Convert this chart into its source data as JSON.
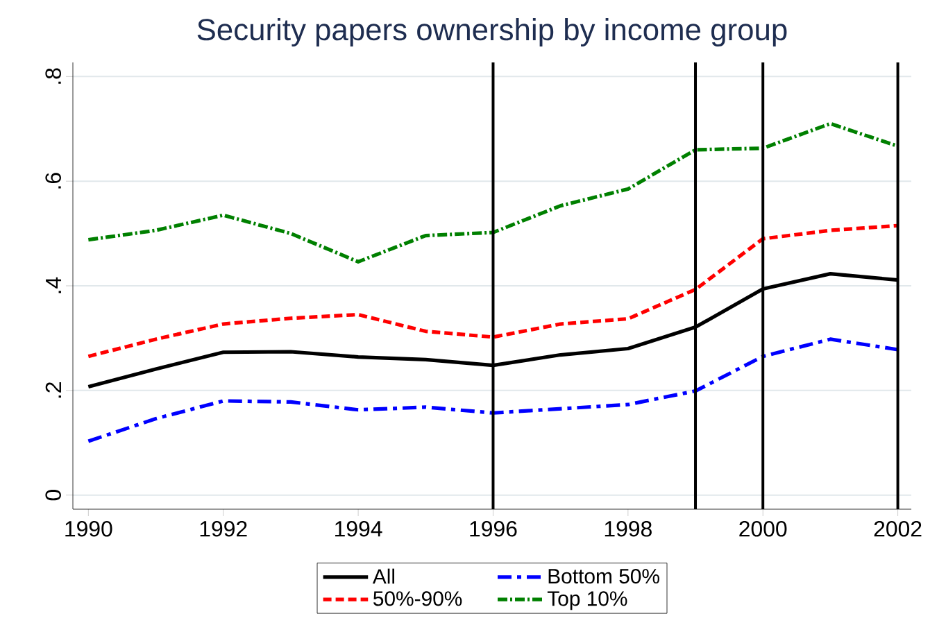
{
  "chart_data": {
    "type": "line",
    "title": "Security papers ownership by income group",
    "x": [
      1990,
      1991,
      1992,
      1993,
      1994,
      1995,
      1996,
      1997,
      1998,
      1999,
      2000,
      2001,
      2002
    ],
    "series": [
      {
        "name": "All",
        "color": "#000000",
        "line_style": "solid",
        "values": [
          0.207,
          0.241,
          0.273,
          0.274,
          0.264,
          0.259,
          0.248,
          0.268,
          0.28,
          0.321,
          0.394,
          0.423,
          0.411
        ]
      },
      {
        "name": "Bottom 50%",
        "color": "#0000ff",
        "line_style": "dashdot",
        "values": [
          0.103,
          0.146,
          0.18,
          0.178,
          0.163,
          0.168,
          0.157,
          0.165,
          0.173,
          0.199,
          0.265,
          0.298,
          0.278
        ]
      },
      {
        "name": "50%-90%",
        "color": "#ff0000",
        "line_style": "dashed",
        "values": [
          0.265,
          0.298,
          0.327,
          0.338,
          0.345,
          0.313,
          0.302,
          0.327,
          0.337,
          0.393,
          0.49,
          0.506,
          0.515
        ]
      },
      {
        "name": "Top 10%",
        "color": "#008000",
        "line_style": "dashdotdotted",
        "values": [
          0.488,
          0.506,
          0.535,
          0.5,
          0.446,
          0.496,
          0.502,
          0.553,
          0.585,
          0.66,
          0.663,
          0.71,
          0.667
        ]
      }
    ],
    "xlim": [
      1989.77,
      2002.2
    ],
    "xticks": [
      1990,
      1992,
      1994,
      1996,
      1998,
      2000,
      2002
    ],
    "ylim": [
      -0.027,
      0.827
    ],
    "yticks": [
      0,
      {
        "value": 0.2,
        "label": ".2"
      },
      {
        "value": 0.4,
        "label": ".4"
      },
      {
        "value": 0.6,
        "label": ".6"
      },
      {
        "value": 0.8,
        "label": ".8"
      }
    ],
    "ref_lines": [
      {
        "axis": "x",
        "value": 1996,
        "color": "#000000"
      },
      {
        "axis": "x",
        "value": 1999,
        "color": "#000000"
      },
      {
        "axis": "x",
        "value": 2000,
        "color": "#000000"
      },
      {
        "axis": "x",
        "value": 2002,
        "color": "#000000"
      }
    ],
    "grid": "y",
    "legend": "bottom"
  }
}
